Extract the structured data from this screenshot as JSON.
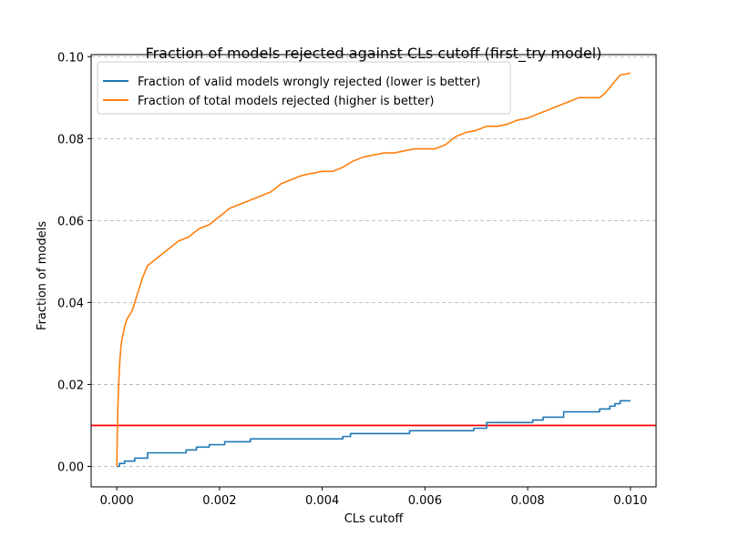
{
  "chart_data": {
    "type": "line",
    "title": "Fraction of models rejected against CLs cutoff (first_try model)",
    "xlabel": "CLs cutoff",
    "ylabel": "Fraction of models",
    "xlim": [
      -0.0005,
      0.0105
    ],
    "ylim": [
      -0.005,
      0.1005
    ],
    "xticks": [
      0.0,
      0.002,
      0.004,
      0.006,
      0.008,
      0.01
    ],
    "xtick_labels": [
      "0.000",
      "0.002",
      "0.004",
      "0.006",
      "0.008",
      "0.010"
    ],
    "yticks": [
      0.0,
      0.02,
      0.04,
      0.06,
      0.08,
      0.1
    ],
    "ytick_labels": [
      "0.00",
      "0.02",
      "0.04",
      "0.06",
      "0.08",
      "0.10"
    ],
    "grid": "y-dashed",
    "legend_position": "upper-left",
    "series": [
      {
        "name": "Fraction of valid models wrongly rejected (lower is better)",
        "color": "#1f77b4",
        "step": true,
        "x": [
          0.0,
          5e-05,
          0.00015,
          0.00035,
          0.0006,
          0.00135,
          0.00155,
          0.0018,
          0.0021,
          0.0026,
          0.0029,
          0.0044,
          0.00445,
          0.00455,
          0.0057,
          0.0064,
          0.00695,
          0.0072,
          0.008,
          0.0081,
          0.0083,
          0.0087,
          0.0094,
          0.0096,
          0.0097,
          0.0098,
          0.01
        ],
        "y": [
          0.0,
          0.0007,
          0.0013,
          0.002,
          0.0033,
          0.004,
          0.0047,
          0.0053,
          0.006,
          0.0067,
          0.0067,
          0.0073,
          0.0073,
          0.008,
          0.0087,
          0.0087,
          0.0093,
          0.0107,
          0.0107,
          0.0113,
          0.012,
          0.0133,
          0.014,
          0.0147,
          0.0153,
          0.016,
          0.016
        ]
      },
      {
        "name": "Fraction of total models rejected (higher is better)",
        "color": "#ff7f0e",
        "step": false,
        "x": [
          0.0,
          1e-05,
          2e-05,
          4e-05,
          6e-05,
          8e-05,
          0.0001,
          0.00015,
          0.0002,
          0.0003,
          0.0004,
          0.0005,
          0.0006,
          0.0008,
          0.001,
          0.0012,
          0.0014,
          0.0016,
          0.0018,
          0.002,
          0.0022,
          0.0024,
          0.0026,
          0.0028,
          0.003,
          0.0032,
          0.0034,
          0.0036,
          0.0038,
          0.004,
          0.0042,
          0.0044,
          0.0046,
          0.0048,
          0.005,
          0.0052,
          0.0054,
          0.0056,
          0.0058,
          0.006,
          0.0062,
          0.0064,
          0.0066,
          0.0068,
          0.007,
          0.0072,
          0.0074,
          0.0076,
          0.0078,
          0.008,
          0.0082,
          0.0084,
          0.0086,
          0.0088,
          0.009,
          0.0092,
          0.0094,
          0.0095,
          0.0096,
          0.0097,
          0.0098,
          0.01
        ],
        "y": [
          0.0,
          0.008,
          0.014,
          0.021,
          0.026,
          0.029,
          0.031,
          0.034,
          0.036,
          0.038,
          0.042,
          0.046,
          0.049,
          0.051,
          0.053,
          0.055,
          0.056,
          0.058,
          0.059,
          0.061,
          0.063,
          0.064,
          0.065,
          0.066,
          0.067,
          0.069,
          0.07,
          0.071,
          0.0715,
          0.072,
          0.072,
          0.073,
          0.0745,
          0.0755,
          0.076,
          0.0765,
          0.0765,
          0.077,
          0.0775,
          0.0775,
          0.0775,
          0.0785,
          0.0805,
          0.0815,
          0.082,
          0.083,
          0.083,
          0.0835,
          0.0845,
          0.085,
          0.086,
          0.087,
          0.088,
          0.089,
          0.09,
          0.09,
          0.09,
          0.091,
          0.0925,
          0.094,
          0.0955,
          0.096
        ]
      }
    ],
    "reference_line": {
      "y": 0.01,
      "color": "#ff0000",
      "orientation": "horizontal"
    }
  }
}
